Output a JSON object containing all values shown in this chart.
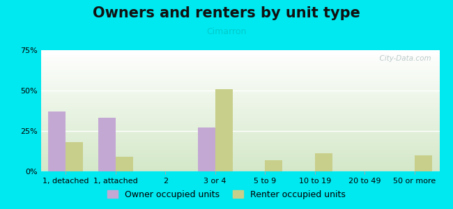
{
  "title": "Owners and renters by unit type",
  "subtitle": "Cimarron",
  "categories": [
    "1, detached",
    "1, attached",
    "2",
    "3 or 4",
    "5 to 9",
    "10 to 19",
    "20 to 49",
    "50 or more"
  ],
  "owner_values": [
    37,
    33,
    0,
    27,
    0,
    0,
    0,
    0
  ],
  "renter_values": [
    18,
    9,
    0,
    51,
    7,
    11,
    0,
    10
  ],
  "owner_color": "#c4a8d4",
  "renter_color": "#c8cf8a",
  "background_outer": "#00e8f0",
  "gradient_top": "#ffffff",
  "gradient_bottom": "#d4e8c8",
  "ylim": [
    0,
    75
  ],
  "yticks": [
    0,
    25,
    50,
    75
  ],
  "bar_width": 0.35,
  "legend_owner": "Owner occupied units",
  "legend_renter": "Renter occupied units",
  "title_fontsize": 15,
  "subtitle_fontsize": 9,
  "subtitle_color": "#00cccc",
  "tick_fontsize": 8,
  "legend_fontsize": 9,
  "watermark_text": "  City-Data.com",
  "watermark_color": "#b0c0c0"
}
